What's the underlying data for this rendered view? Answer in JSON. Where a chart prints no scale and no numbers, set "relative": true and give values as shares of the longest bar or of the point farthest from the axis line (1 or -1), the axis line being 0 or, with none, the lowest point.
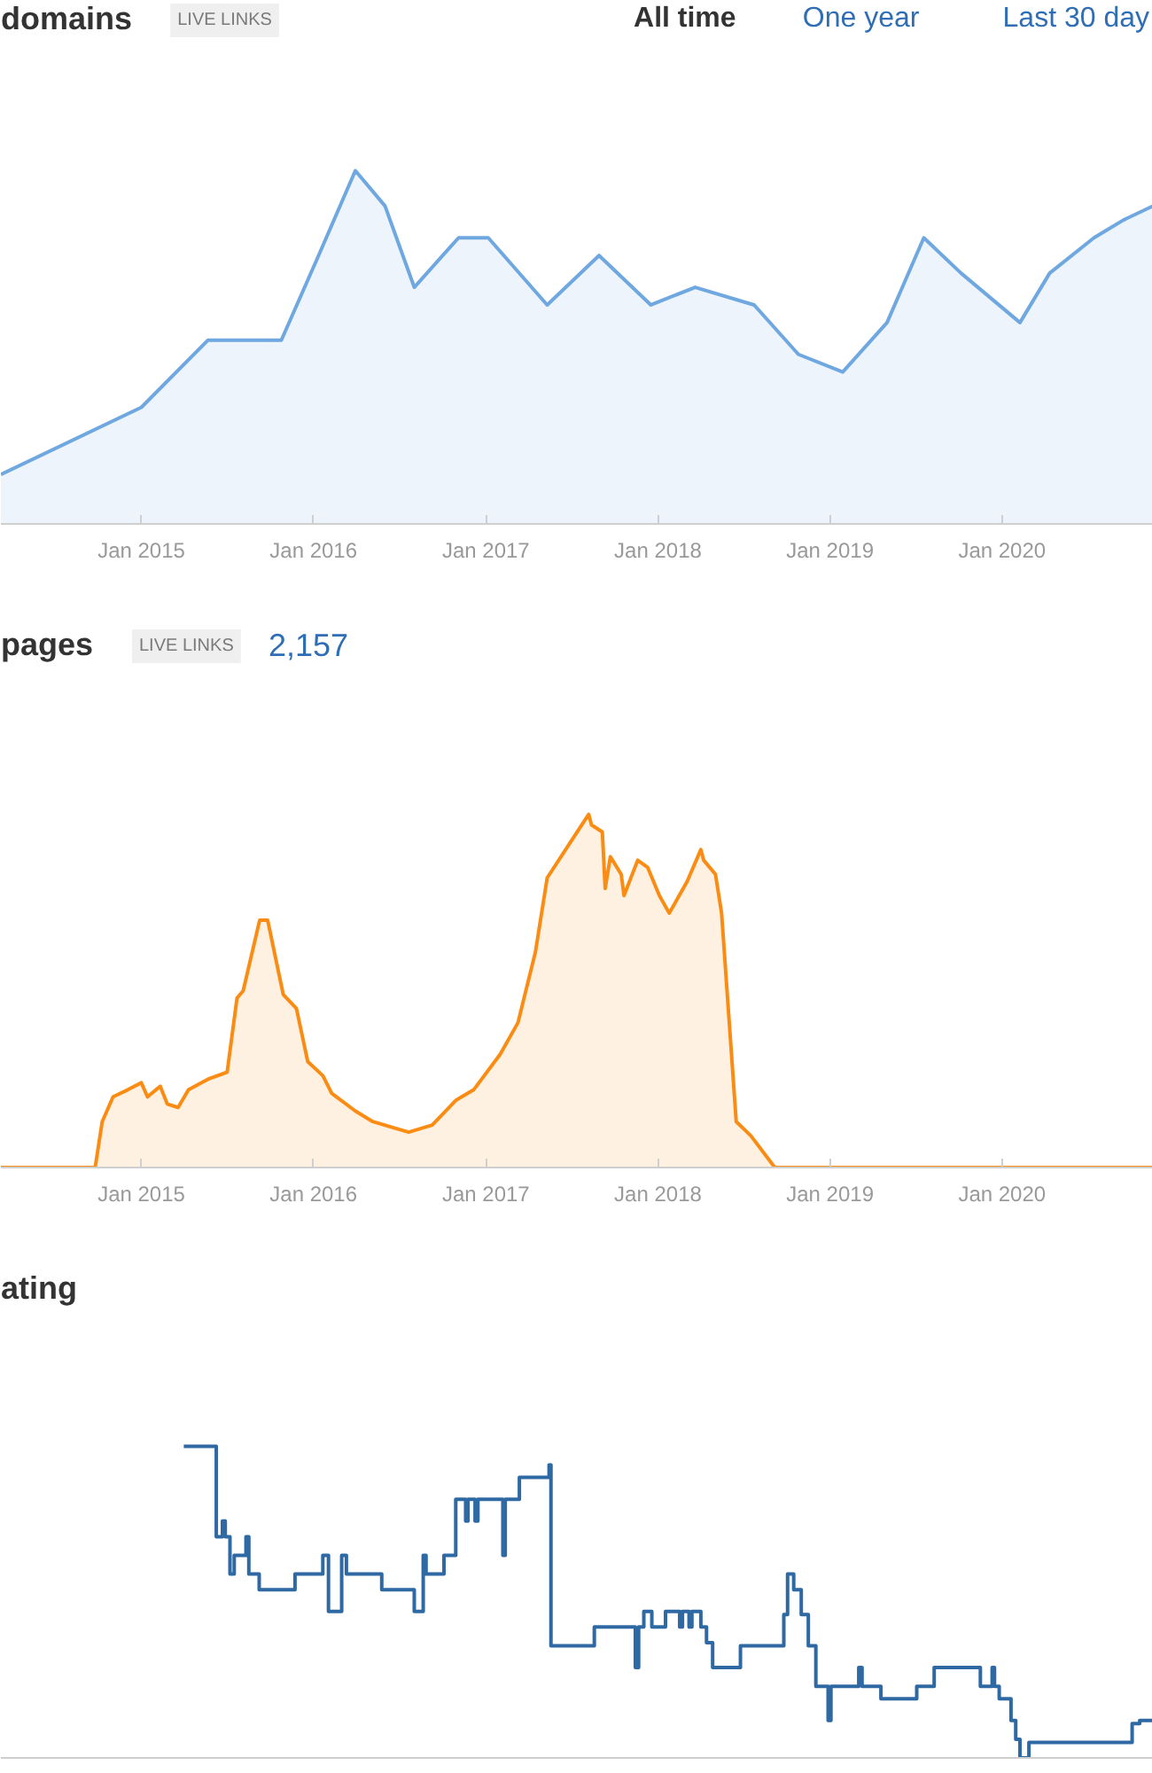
{
  "chart_data": [
    {
      "type": "area",
      "title": "domains",
      "subtitle": "LIVE LINKS",
      "annotations": [
        "All time",
        "One year",
        "Last 30 day"
      ],
      "relative": true,
      "color": "#6fa8e0",
      "xlim": [
        "2014-03-09",
        "2020-11-16"
      ],
      "xticks": [
        {
          "value": "2015-01",
          "label": "Jan 2015"
        },
        {
          "value": "2016-01",
          "label": "Jan 2016"
        },
        {
          "value": "2017-01",
          "label": "Jan 2017"
        },
        {
          "value": "2018-01",
          "label": "Jan 2018"
        },
        {
          "value": "2019-01",
          "label": "Jan 2019"
        },
        {
          "value": "2020-01",
          "label": "Jan 2020"
        }
      ],
      "x": [
        "2014-03-09",
        "2015-01-01",
        "2015-05-22",
        "2015-10-25",
        "2016-01-12",
        "2016-03-30",
        "2016-06-01",
        "2016-08-02",
        "2016-11-04",
        "2017-01-06",
        "2017-05-11",
        "2017-08-29",
        "2017-12-17",
        "2018-03-21",
        "2018-07-24",
        "2018-10-26",
        "2019-01-28",
        "2019-05-02",
        "2019-07-19",
        "2019-10-06",
        "2020-02-08",
        "2020-04-11",
        "2020-07-14",
        "2020-09-14",
        "2020-11-16"
      ],
      "values": [
        0.14,
        0.33,
        0.52,
        0.52,
        0.76,
        1.0,
        0.9,
        0.67,
        0.81,
        0.81,
        0.62,
        0.76,
        0.62,
        0.67,
        0.62,
        0.48,
        0.43,
        0.57,
        0.81,
        0.71,
        0.57,
        0.71,
        0.81,
        0.86,
        0.9
      ]
    },
    {
      "type": "area",
      "title": "pages",
      "subtitle": "LIVE LINKS",
      "annotations": [
        "2,157"
      ],
      "relative": true,
      "color": "#fb8c13",
      "xlim": [
        "2014-03-09",
        "2020-11-16"
      ],
      "xticks": [
        {
          "value": "2015-01",
          "label": "Jan 2015"
        },
        {
          "value": "2016-01",
          "label": "Jan 2016"
        },
        {
          "value": "2017-01",
          "label": "Jan 2017"
        },
        {
          "value": "2018-01",
          "label": "Jan 2018"
        },
        {
          "value": "2019-01",
          "label": "Jan 2019"
        },
        {
          "value": "2020-01",
          "label": "Jan 2020"
        }
      ],
      "x": [
        "2014-03-09",
        "2014-09-25",
        "2014-10-10",
        "2014-11-02",
        "2014-12-03",
        "2015-01-01",
        "2015-01-14",
        "2015-02-10",
        "2015-02-25",
        "2015-03-20",
        "2015-04-11",
        "2015-05-22",
        "2015-07-02",
        "2015-07-23",
        "2015-08-05",
        "2015-09-09",
        "2015-09-26",
        "2015-10-29",
        "2015-11-26",
        "2015-12-20",
        "2016-01-21",
        "2016-02-09",
        "2016-03-30",
        "2016-05-06",
        "2016-07-21",
        "2016-09-09",
        "2016-10-29",
        "2016-12-06",
        "2017-01-31",
        "2017-03-10",
        "2017-04-16",
        "2017-05-11",
        "2017-06-24",
        "2017-08-07",
        "2017-08-13",
        "2017-09-05",
        "2017-09-11",
        "2017-09-22",
        "2017-10-15",
        "2017-10-21",
        "2017-11-19",
        "2017-12-10",
        "2018-01-04",
        "2018-01-25",
        "2018-03-04",
        "2018-04-02",
        "2018-04-08",
        "2018-05-03",
        "2018-05-16",
        "2018-06-16",
        "2018-07-17",
        "2018-09-06",
        "2020-11-16"
      ],
      "values": [
        0,
        0,
        0.13,
        0.2,
        0.22,
        0.24,
        0.2,
        0.23,
        0.18,
        0.17,
        0.22,
        0.25,
        0.27,
        0.48,
        0.5,
        0.7,
        0.7,
        0.49,
        0.45,
        0.3,
        0.26,
        0.21,
        0.16,
        0.13,
        0.1,
        0.12,
        0.19,
        0.22,
        0.32,
        0.41,
        0.61,
        0.82,
        0.91,
        1.0,
        0.97,
        0.95,
        0.79,
        0.88,
        0.83,
        0.77,
        0.87,
        0.85,
        0.77,
        0.72,
        0.81,
        0.9,
        0.87,
        0.83,
        0.72,
        0.13,
        0.09,
        0,
        0
      ]
    },
    {
      "type": "step",
      "title": "ating",
      "relative": true,
      "tick_labels": false,
      "color": "#2f69a3",
      "xlim": [
        "2014-03-09",
        "2020-11-16"
      ],
      "x": [
        "2015-04-01",
        "2015-06-09",
        "2015-06-22",
        "2015-06-28",
        "2015-07-08",
        "2015-07-17",
        "2015-08-11",
        "2015-08-17",
        "2015-09-08",
        "2015-11-23",
        "2016-01-21",
        "2016-02-02",
        "2016-03-01",
        "2016-03-11",
        "2016-05-25",
        "2016-08-02",
        "2016-08-21",
        "2016-08-27",
        "2016-10-04",
        "2016-10-29",
        "2016-11-19",
        "2016-11-24",
        "2016-12-09",
        "2016-12-15",
        "2017-02-06",
        "2017-02-11",
        "2017-03-13",
        "2017-05-15",
        "2017-05-19",
        "2017-08-19",
        "2017-11-14",
        "2017-11-21",
        "2017-12-02",
        "2017-12-19",
        "2018-01-17",
        "2018-02-16",
        "2018-02-22",
        "2018-03-08",
        "2018-03-14",
        "2018-04-02",
        "2018-04-14",
        "2018-04-27",
        "2018-06-25",
        "2018-09-25",
        "2018-10-03",
        "2018-10-16",
        "2018-11-01",
        "2018-11-16",
        "2018-12-02",
        "2018-12-28",
        "2019-01-03",
        "2019-03-03",
        "2019-03-10",
        "2019-04-19",
        "2019-07-04",
        "2019-08-10",
        "2019-11-16",
        "2019-12-11",
        "2019-12-16",
        "2019-12-26",
        "2020-01-20",
        "2020-01-30",
        "2020-02-08",
        "2020-02-27",
        "2020-10-03",
        "2020-10-19",
        "2020-11-16"
      ],
      "values": [
        1.0,
        0.71,
        0.76,
        0.71,
        0.59,
        0.65,
        0.71,
        0.59,
        0.54,
        0.59,
        0.65,
        0.47,
        0.65,
        0.59,
        0.54,
        0.47,
        0.65,
        0.59,
        0.65,
        0.83,
        0.76,
        0.83,
        0.76,
        0.83,
        0.65,
        0.83,
        0.9,
        0.94,
        0.36,
        0.42,
        0.29,
        0.42,
        0.47,
        0.42,
        0.47,
        0.42,
        0.47,
        0.42,
        0.47,
        0.42,
        0.37,
        0.29,
        0.36,
        0.46,
        0.59,
        0.54,
        0.46,
        0.36,
        0.23,
        0.12,
        0.23,
        0.29,
        0.23,
        0.19,
        0.23,
        0.29,
        0.23,
        0.29,
        0.23,
        0.19,
        0.12,
        0.06,
        0,
        0.05,
        0.11,
        0.12,
        0.12
      ]
    }
  ]
}
